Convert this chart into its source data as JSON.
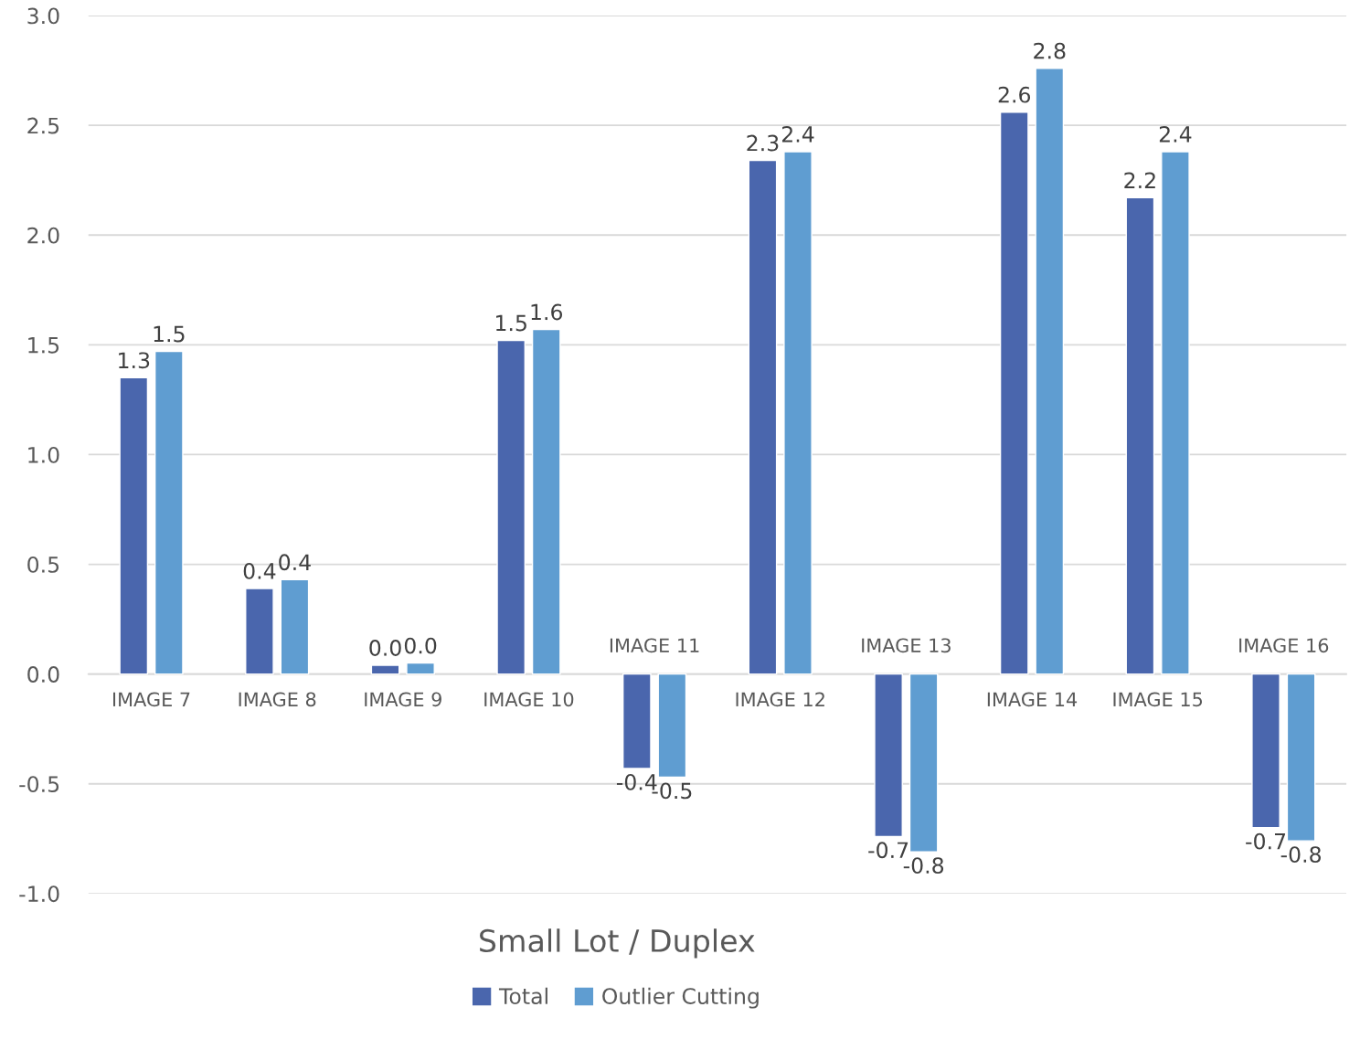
{
  "chart_data": {
    "type": "bar",
    "xlabel": "Small Lot / Duplex",
    "categories": [
      "IMAGE 7",
      "IMAGE 8",
      "IMAGE 9",
      "IMAGE 10",
      "IMAGE 11",
      "IMAGE 12",
      "IMAGE 13",
      "IMAGE 14",
      "IMAGE 15",
      "IMAGE 16"
    ],
    "series": [
      {
        "name": "Total",
        "color": "#4a66ad",
        "values": [
          1.35,
          0.39,
          0.04,
          1.52,
          -0.43,
          2.34,
          -0.74,
          2.56,
          2.17,
          -0.7
        ],
        "value_labels": [
          "1.3",
          "0.4",
          "0.0",
          "1.5",
          "-0.4",
          "2.3",
          "-0.7",
          "2.6",
          "2.2",
          "-0.7"
        ]
      },
      {
        "name": "Outlier Cutting",
        "color": "#5f9dd1",
        "values": [
          1.47,
          0.43,
          0.05,
          1.57,
          -0.47,
          2.38,
          -0.81,
          2.76,
          2.38,
          -0.76
        ],
        "value_labels": [
          "1.5",
          "0.4",
          "0.0",
          "1.6",
          "-0.5",
          "2.4",
          "-0.8",
          "2.8",
          "2.4",
          "-0.8"
        ]
      }
    ],
    "ylim": [
      -1,
      3
    ],
    "yticks": [
      {
        "value": -1,
        "label": "-1.0"
      },
      {
        "value": -0.5,
        "label": "-0.5"
      },
      {
        "value": 0,
        "label": "0.0"
      },
      {
        "value": 0.5,
        "label": "0.5"
      },
      {
        "value": 1,
        "label": "1.0"
      },
      {
        "value": 1.5,
        "label": "1.5"
      },
      {
        "value": 2,
        "label": "2.0"
      },
      {
        "value": 2.5,
        "label": "2.5"
      },
      {
        "value": 3,
        "label": "3.0"
      }
    ],
    "grid": "y",
    "legend": "bottom"
  }
}
